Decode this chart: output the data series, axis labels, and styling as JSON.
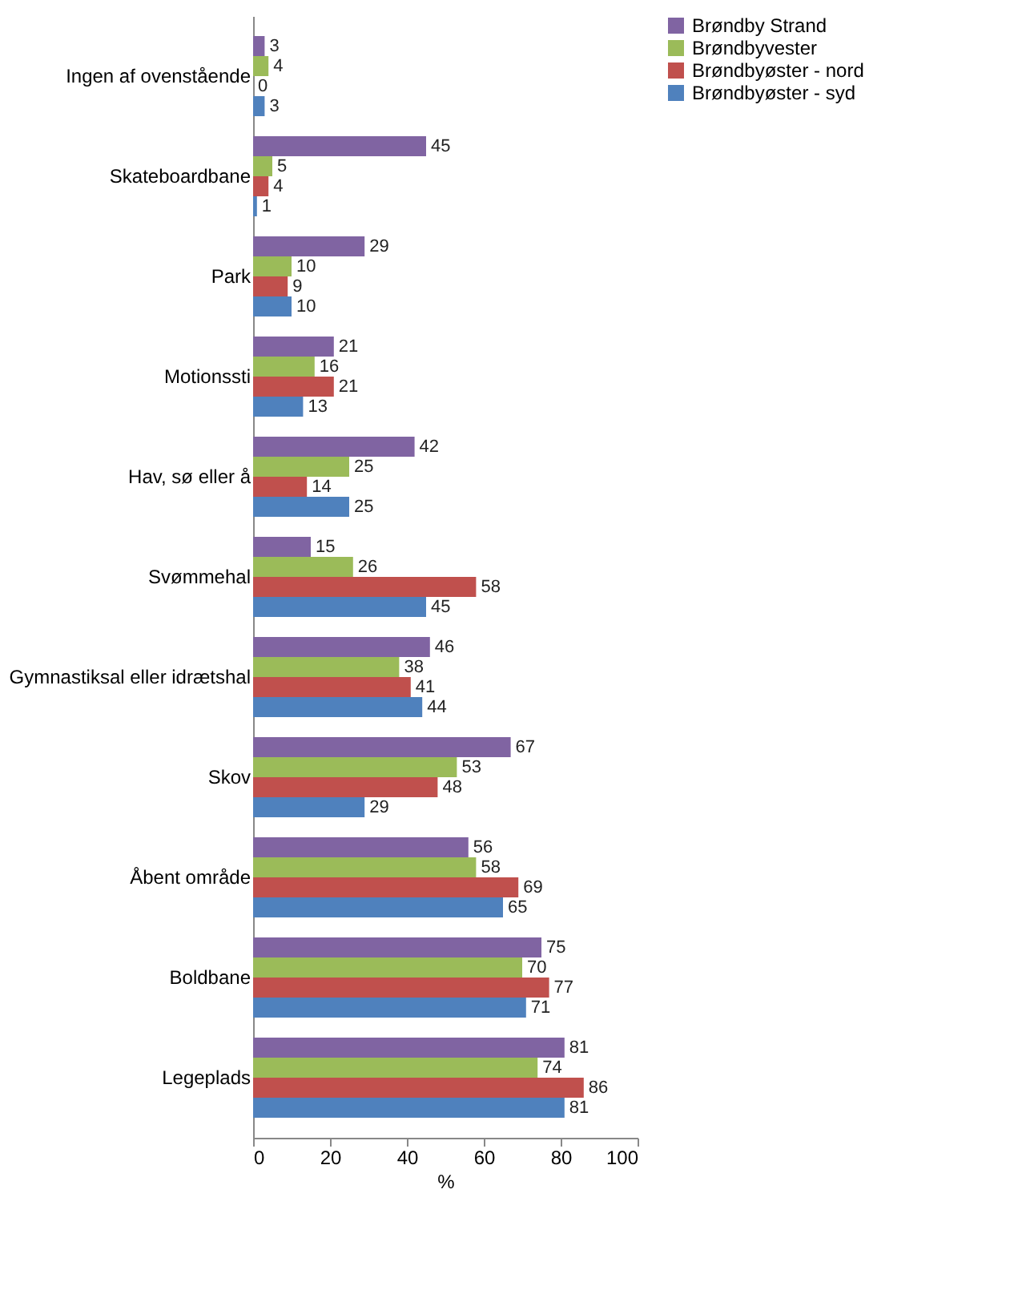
{
  "chart_data": {
    "type": "bar",
    "orientation": "horizontal",
    "xlabel": "%",
    "categories": [
      "Ingen af ovenstående",
      "Skateboardbane",
      "Park",
      "Motionssti",
      "Hav, sø eller å",
      "Svømmehal",
      "Gymnastiksal eller idrætshal",
      "Skov",
      "Åbent område",
      "Boldbane",
      "Legeplads"
    ],
    "series": [
      {
        "name": "Brøndby Strand",
        "color": "#8064a2",
        "values": [
          3,
          45,
          29,
          21,
          42,
          15,
          46,
          67,
          56,
          75,
          81
        ]
      },
      {
        "name": "Brøndbyvester",
        "color": "#9bbb59",
        "values": [
          4,
          5,
          10,
          16,
          25,
          26,
          38,
          53,
          58,
          70,
          74
        ]
      },
      {
        "name": "Brøndbyøster - nord",
        "color": "#c0504d",
        "values": [
          0,
          4,
          9,
          21,
          14,
          58,
          41,
          48,
          69,
          77,
          86
        ]
      },
      {
        "name": "Brøndbyøster - syd",
        "color": "#4f81bd",
        "values": [
          3,
          1,
          10,
          13,
          25,
          45,
          44,
          29,
          65,
          71,
          81
        ]
      }
    ],
    "xlim": [
      0,
      100
    ],
    "xticks": [
      0,
      20,
      40,
      60,
      80,
      100
    ],
    "grid": false,
    "legend": "right",
    "data_labels": true
  }
}
